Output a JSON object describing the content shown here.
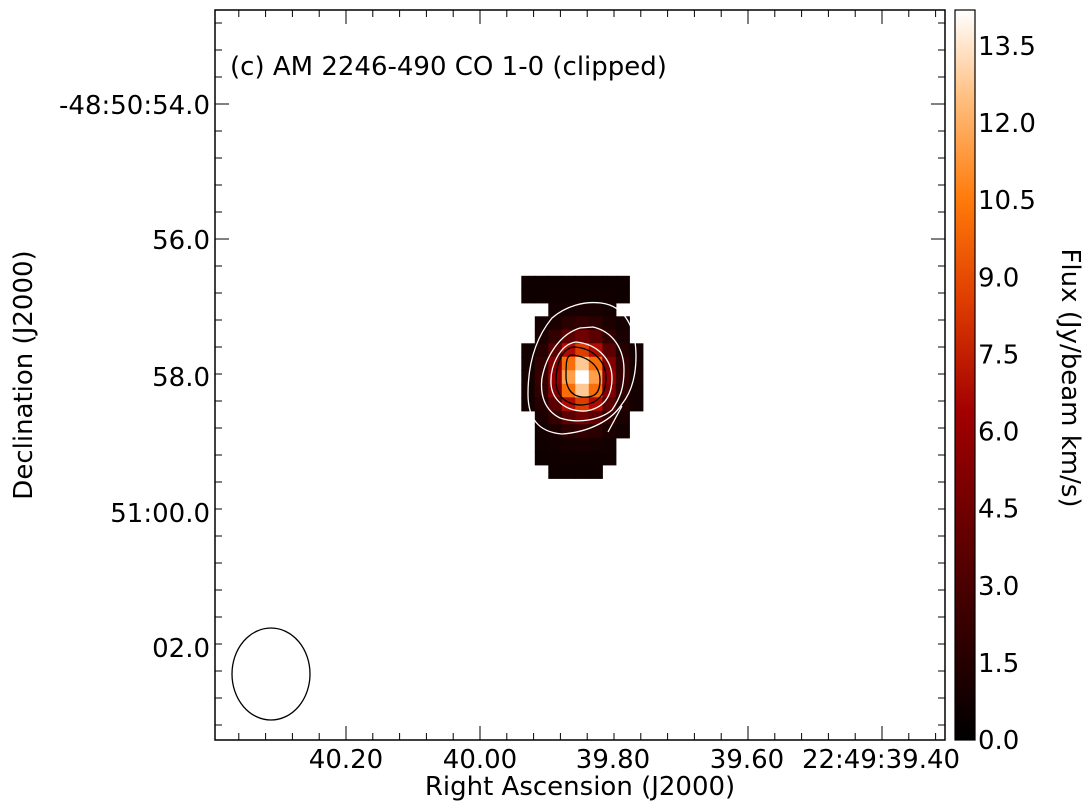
{
  "chart_data": {
    "type": "heatmap",
    "title": "(c) AM 2246-490 CO 1-0 (clipped)",
    "xlabel": "Right Ascension (J2000)",
    "ylabel": "Declination (J2000)",
    "colorbar_label": "Flux (Jy/beam km/s)",
    "colormap": "gist_heat",
    "x_ticks": [
      "40.20",
      "40.00",
      "39.80",
      "39.60",
      "22:49:39.40"
    ],
    "y_ticks": [
      "-48:50:54.0",
      "56.0",
      "58.0",
      "51:00.0",
      "02.0"
    ],
    "colorbar_ticks": [
      "0.0",
      "1.5",
      "3.0",
      "4.5",
      "6.0",
      "7.5",
      "9.0",
      "10.5",
      "12.0",
      "13.5"
    ],
    "clim": [
      0.0,
      14.2
    ],
    "peak_flux": 14.0,
    "contours": {
      "white_levels": [
        2.5,
        4.5,
        6.0
      ],
      "black_levels": [
        10.0,
        12.0
      ]
    },
    "beam": {
      "shape": "ellipse",
      "position": "bottom-left"
    }
  }
}
